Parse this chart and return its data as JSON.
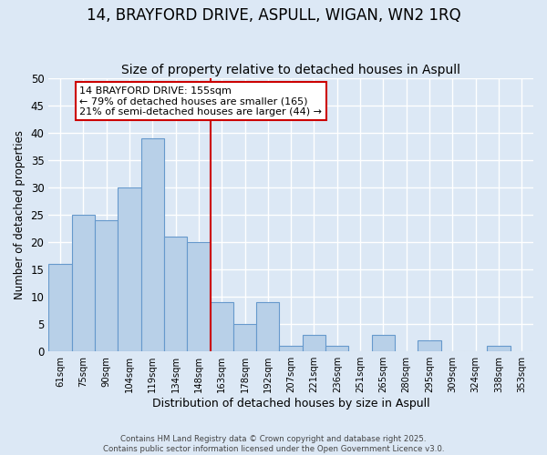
{
  "title": "14, BRAYFORD DRIVE, ASPULL, WIGAN, WN2 1RQ",
  "subtitle": "Size of property relative to detached houses in Aspull",
  "xlabel": "Distribution of detached houses by size in Aspull",
  "ylabel": "Number of detached properties",
  "bar_labels": [
    "61sqm",
    "75sqm",
    "90sqm",
    "104sqm",
    "119sqm",
    "134sqm",
    "148sqm",
    "163sqm",
    "178sqm",
    "192sqm",
    "207sqm",
    "221sqm",
    "236sqm",
    "251sqm",
    "265sqm",
    "280sqm",
    "295sqm",
    "309sqm",
    "324sqm",
    "338sqm",
    "353sqm"
  ],
  "bar_values": [
    16,
    25,
    24,
    30,
    39,
    21,
    20,
    9,
    5,
    9,
    1,
    3,
    1,
    0,
    3,
    0,
    2,
    0,
    0,
    1,
    0
  ],
  "bar_color": "#b8d0e8",
  "bar_edge_color": "#6699cc",
  "vline_color": "#cc0000",
  "ylim": [
    0,
    50
  ],
  "yticks": [
    0,
    5,
    10,
    15,
    20,
    25,
    30,
    35,
    40,
    45,
    50
  ],
  "annotation_title": "14 BRAYFORD DRIVE: 155sqm",
  "annotation_line1": "← 79% of detached houses are smaller (165)",
  "annotation_line2": "21% of semi-detached houses are larger (44) →",
  "annotation_box_color": "#ffffff",
  "annotation_box_edge": "#cc0000",
  "bg_color": "#dce8f5",
  "footer_line1": "Contains HM Land Registry data © Crown copyright and database right 2025.",
  "footer_line2": "Contains public sector information licensed under the Open Government Licence v3.0.",
  "grid_color": "#ffffff",
  "title_fontsize": 12,
  "subtitle_fontsize": 10
}
